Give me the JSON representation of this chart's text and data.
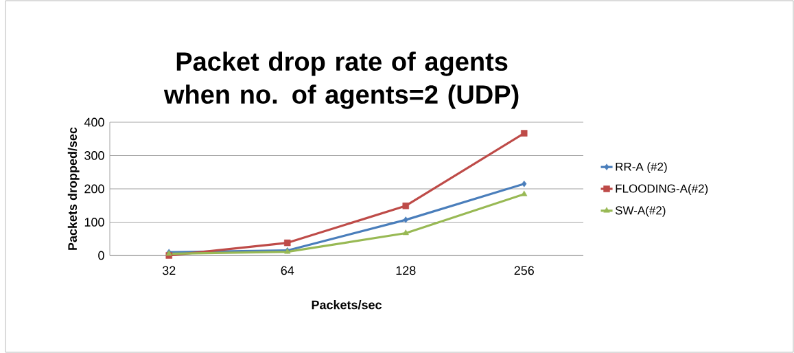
{
  "chart_data": {
    "type": "line",
    "title": "Packet drop rate of agents when no. of agents=2 (UDP)",
    "xlabel": "Packets/sec",
    "ylabel": "Packets dropped/sec",
    "categories": [
      "32",
      "64",
      "128",
      "256"
    ],
    "series": [
      {
        "name": "RR-A (#2)",
        "color": "#4a7ebb",
        "marker": "diamond",
        "values": [
          10,
          15,
          107,
          215
        ]
      },
      {
        "name": "FLOODING-A(#2)",
        "color": "#be4b48",
        "marker": "square",
        "values": [
          0,
          38,
          149,
          367
        ]
      },
      {
        "name": "SW-A(#2)",
        "color": "#98b954",
        "marker": "triangle",
        "values": [
          5,
          11,
          67,
          184
        ]
      }
    ],
    "ylim": [
      0,
      400
    ],
    "yticks": [
      0,
      100,
      200,
      300,
      400
    ],
    "grid": "y",
    "legend": "right"
  }
}
